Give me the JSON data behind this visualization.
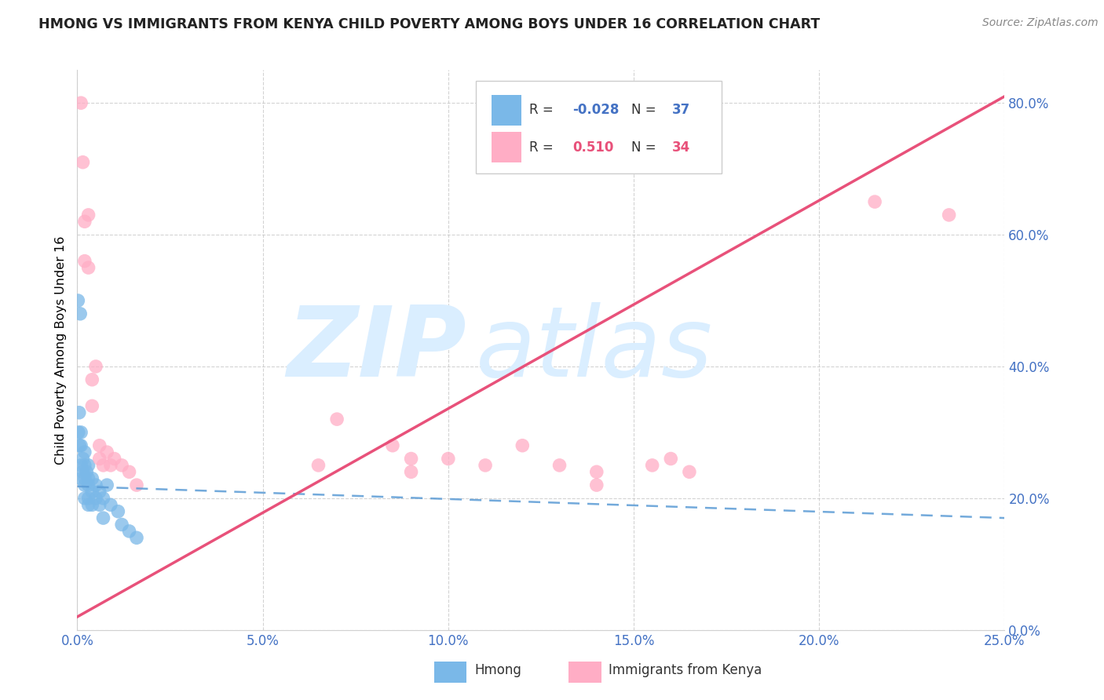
{
  "title": "HMONG VS IMMIGRANTS FROM KENYA CHILD POVERTY AMONG BOYS UNDER 16 CORRELATION CHART",
  "source": "Source: ZipAtlas.com",
  "ylabel_label": "Child Poverty Among Boys Under 16",
  "legend_label1": "Hmong",
  "legend_label2": "Immigrants from Kenya",
  "R1": -0.028,
  "N1": 37,
  "R2": 0.51,
  "N2": 34,
  "xlim": [
    0.0,
    0.25
  ],
  "ylim": [
    0.0,
    0.85
  ],
  "x_ticks": [
    0.0,
    0.05,
    0.1,
    0.15,
    0.2,
    0.25
  ],
  "y_ticks": [
    0.0,
    0.2,
    0.4,
    0.6,
    0.8
  ],
  "hmong_x": [
    0.0002,
    0.0003,
    0.0005,
    0.0006,
    0.0008,
    0.001,
    0.001,
    0.001,
    0.001,
    0.0015,
    0.0015,
    0.002,
    0.002,
    0.002,
    0.002,
    0.002,
    0.0025,
    0.003,
    0.003,
    0.003,
    0.003,
    0.003,
    0.004,
    0.004,
    0.004,
    0.005,
    0.005,
    0.006,
    0.006,
    0.007,
    0.007,
    0.008,
    0.009,
    0.011,
    0.012,
    0.014,
    0.016
  ],
  "hmong_y": [
    0.5,
    0.3,
    0.33,
    0.28,
    0.48,
    0.3,
    0.28,
    0.25,
    0.23,
    0.26,
    0.24,
    0.27,
    0.25,
    0.23,
    0.22,
    0.2,
    0.24,
    0.25,
    0.23,
    0.22,
    0.2,
    0.19,
    0.23,
    0.21,
    0.19,
    0.22,
    0.2,
    0.21,
    0.19,
    0.2,
    0.17,
    0.22,
    0.19,
    0.18,
    0.16,
    0.15,
    0.14
  ],
  "kenya_x": [
    0.001,
    0.0015,
    0.002,
    0.002,
    0.003,
    0.003,
    0.004,
    0.004,
    0.005,
    0.006,
    0.006,
    0.007,
    0.008,
    0.009,
    0.01,
    0.012,
    0.014,
    0.016,
    0.065,
    0.07,
    0.085,
    0.09,
    0.09,
    0.1,
    0.11,
    0.12,
    0.13,
    0.14,
    0.14,
    0.155,
    0.16,
    0.165,
    0.215,
    0.235
  ],
  "kenya_y": [
    0.8,
    0.71,
    0.62,
    0.56,
    0.63,
    0.55,
    0.38,
    0.34,
    0.4,
    0.28,
    0.26,
    0.25,
    0.27,
    0.25,
    0.26,
    0.25,
    0.24,
    0.22,
    0.25,
    0.32,
    0.28,
    0.26,
    0.24,
    0.26,
    0.25,
    0.28,
    0.25,
    0.24,
    0.22,
    0.25,
    0.26,
    0.24,
    0.65,
    0.63
  ],
  "color_hmong": "#7ab8e8",
  "color_kenya": "#ffadc5",
  "line_color_hmong": "#5b9bd5",
  "line_color_kenya": "#e8517a",
  "watermark_zip": "ZIP",
  "watermark_atlas": "atlas",
  "watermark_color": "#daeeff"
}
